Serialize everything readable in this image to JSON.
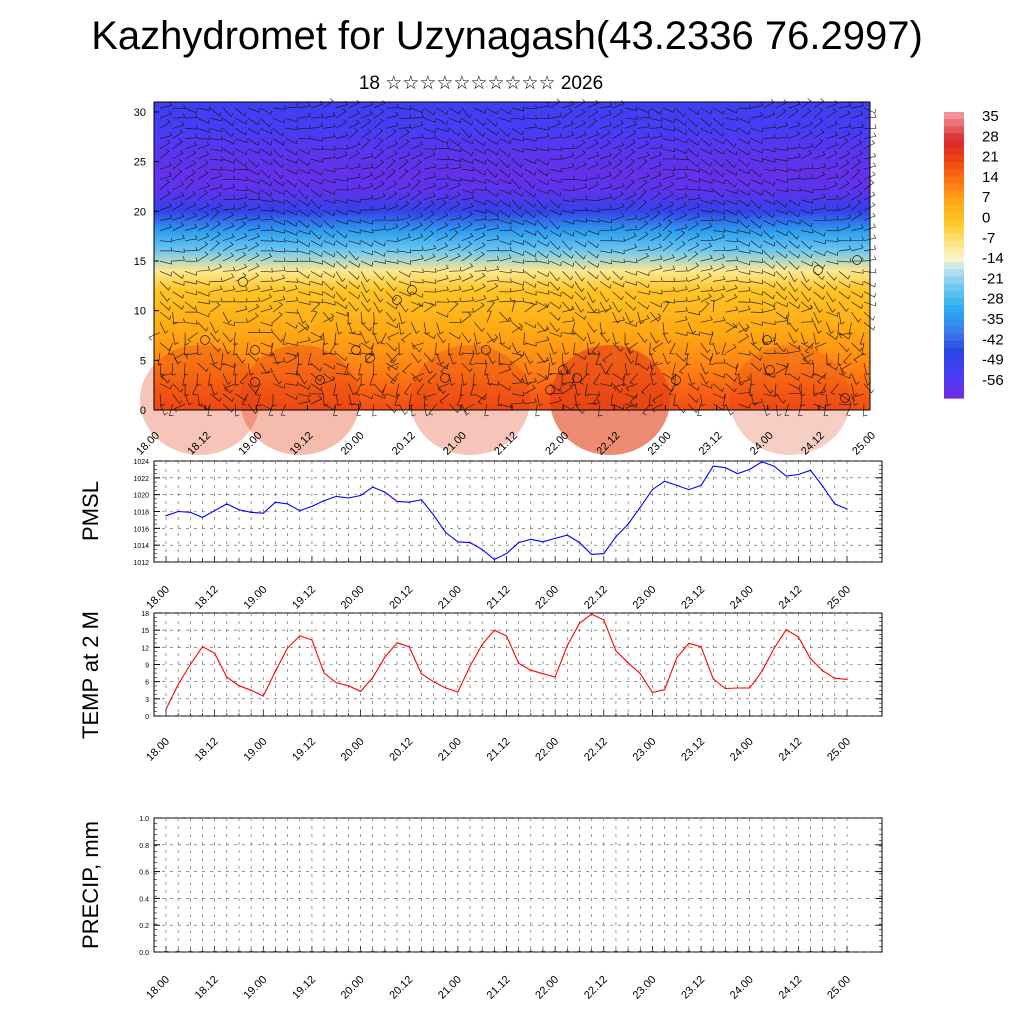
{
  "header": {
    "title": "Kazhydromet for Uzynagash(43.2336 76.2997)",
    "subtitle": "18 ☆☆☆☆☆☆☆☆☆☆ 2026"
  },
  "colors": {
    "pmsl_line": "#0000ff",
    "temp_line": "#ff0000",
    "grid": "#555555"
  },
  "chart_data": [
    {
      "type": "heatmap",
      "name": "upper-air-temperature-wind",
      "title": "",
      "xlabel": "",
      "ylabel": "",
      "x_tick_labels": [
        "18.00",
        "18.12",
        "19.00",
        "19.12",
        "20.00",
        "20.12",
        "21.00",
        "21.12",
        "22.00",
        "22.12",
        "23.00",
        "23.12",
        "24.00",
        "24.12",
        "25.00"
      ],
      "y_ticks": [
        0,
        5,
        10,
        15,
        20,
        25,
        30
      ],
      "ylim": [
        0,
        31
      ],
      "colorbar_labels": [
        "35",
        "28",
        "21",
        "14",
        "7",
        "0",
        "-7",
        "-14",
        "-21",
        "-28",
        "-35",
        "-42",
        "-49",
        "-56"
      ],
      "value_range": [
        -60,
        38
      ],
      "temp_profile_levels": [
        0,
        2,
        4,
        6,
        8,
        10,
        12,
        14,
        16,
        18,
        20,
        22,
        24,
        26,
        28,
        31
      ],
      "temp_profile_values": [
        20,
        17,
        13,
        10,
        7,
        4,
        1,
        -8,
        -22,
        -32,
        -47,
        -56,
        -58,
        -55,
        -52,
        -50
      ],
      "wind_barbs": true
    },
    {
      "type": "line",
      "name": "pmsl",
      "ylabel": "PMSL",
      "ylim": [
        1012,
        1024
      ],
      "y_ticks": [
        1012,
        1014,
        1016,
        1018,
        1020,
        1022,
        1024
      ],
      "x_tick_labels": [
        "18.00",
        "18.12",
        "19.00",
        "19.12",
        "20.00",
        "20.12",
        "21.00",
        "21.12",
        "22.00",
        "22.12",
        "23.00",
        "23.12",
        "24.00",
        "24.12",
        "25.00"
      ],
      "values": [
        1017.5,
        1018.0,
        1017.9,
        1017.3,
        1018.1,
        1018.9,
        1018.2,
        1017.9,
        1017.8,
        1019.1,
        1018.9,
        1018.1,
        1018.6,
        1019.3,
        1019.8,
        1019.6,
        1019.9,
        1020.9,
        1020.3,
        1019.2,
        1019.1,
        1019.4,
        1017.6,
        1015.5,
        1014.4,
        1014.3,
        1013.5,
        1012.3,
        1013.0,
        1014.3,
        1014.7,
        1014.4,
        1014.8,
        1015.2,
        1014.3,
        1012.9,
        1013.0,
        1015.0,
        1016.5,
        1018.5,
        1020.6,
        1021.6,
        1021.1,
        1020.6,
        1021.1,
        1023.4,
        1023.2,
        1022.5,
        1023.0,
        1023.9,
        1023.4,
        1022.2,
        1022.4,
        1022.9,
        1021.0,
        1018.9,
        1018.3
      ]
    },
    {
      "type": "line",
      "name": "temp-2m",
      "ylabel": "TEMP at 2 M",
      "ylim": [
        0,
        18
      ],
      "y_ticks": [
        0,
        3,
        6,
        9,
        12,
        15,
        18
      ],
      "x_tick_labels": [
        "18.00",
        "18.12",
        "19.00",
        "19.12",
        "20.00",
        "20.12",
        "21.00",
        "21.12",
        "22.00",
        "22.12",
        "23.00",
        "23.12",
        "24.00",
        "24.12",
        "25.00"
      ],
      "values": [
        1.2,
        5.5,
        9.0,
        12.1,
        11.0,
        6.8,
        5.3,
        4.5,
        3.5,
        7.8,
        11.9,
        14.0,
        13.3,
        7.5,
        5.8,
        5.3,
        4.3,
        6.7,
        10.3,
        12.8,
        12.1,
        7.4,
        6.0,
        4.9,
        4.2,
        8.7,
        12.5,
        15.0,
        14.0,
        9.2,
        8.0,
        7.4,
        6.8,
        12.3,
        16.2,
        17.8,
        16.8,
        11.4,
        9.3,
        7.4,
        4.1,
        4.6,
        10.2,
        12.7,
        12.1,
        6.5,
        4.8,
        4.9,
        4.9,
        7.8,
        11.8,
        15.1,
        13.8,
        10.0,
        7.9,
        6.6,
        6.4
      ]
    },
    {
      "type": "bar",
      "name": "precip",
      "ylabel": "PRECIP, mm",
      "ylim": [
        0,
        1
      ],
      "y_ticks": [
        "0.0",
        "0.2",
        "0.4",
        "0.6",
        "0.8",
        "1.0"
      ],
      "x_tick_labels": [
        "18.00",
        "18.12",
        "19.00",
        "19.12",
        "20.00",
        "20.12",
        "21.00",
        "21.12",
        "22.00",
        "22.12",
        "23.00",
        "23.12",
        "24.00",
        "24.12",
        "25.00"
      ],
      "values": [
        0,
        0,
        0,
        0,
        0,
        0,
        0,
        0,
        0,
        0,
        0,
        0,
        0,
        0,
        0,
        0,
        0,
        0,
        0,
        0,
        0,
        0,
        0,
        0,
        0,
        0,
        0,
        0,
        0,
        0,
        0,
        0,
        0,
        0,
        0,
        0,
        0,
        0,
        0,
        0,
        0,
        0,
        0,
        0,
        0,
        0,
        0,
        0,
        0,
        0,
        0,
        0,
        0,
        0,
        0,
        0,
        0
      ]
    }
  ]
}
